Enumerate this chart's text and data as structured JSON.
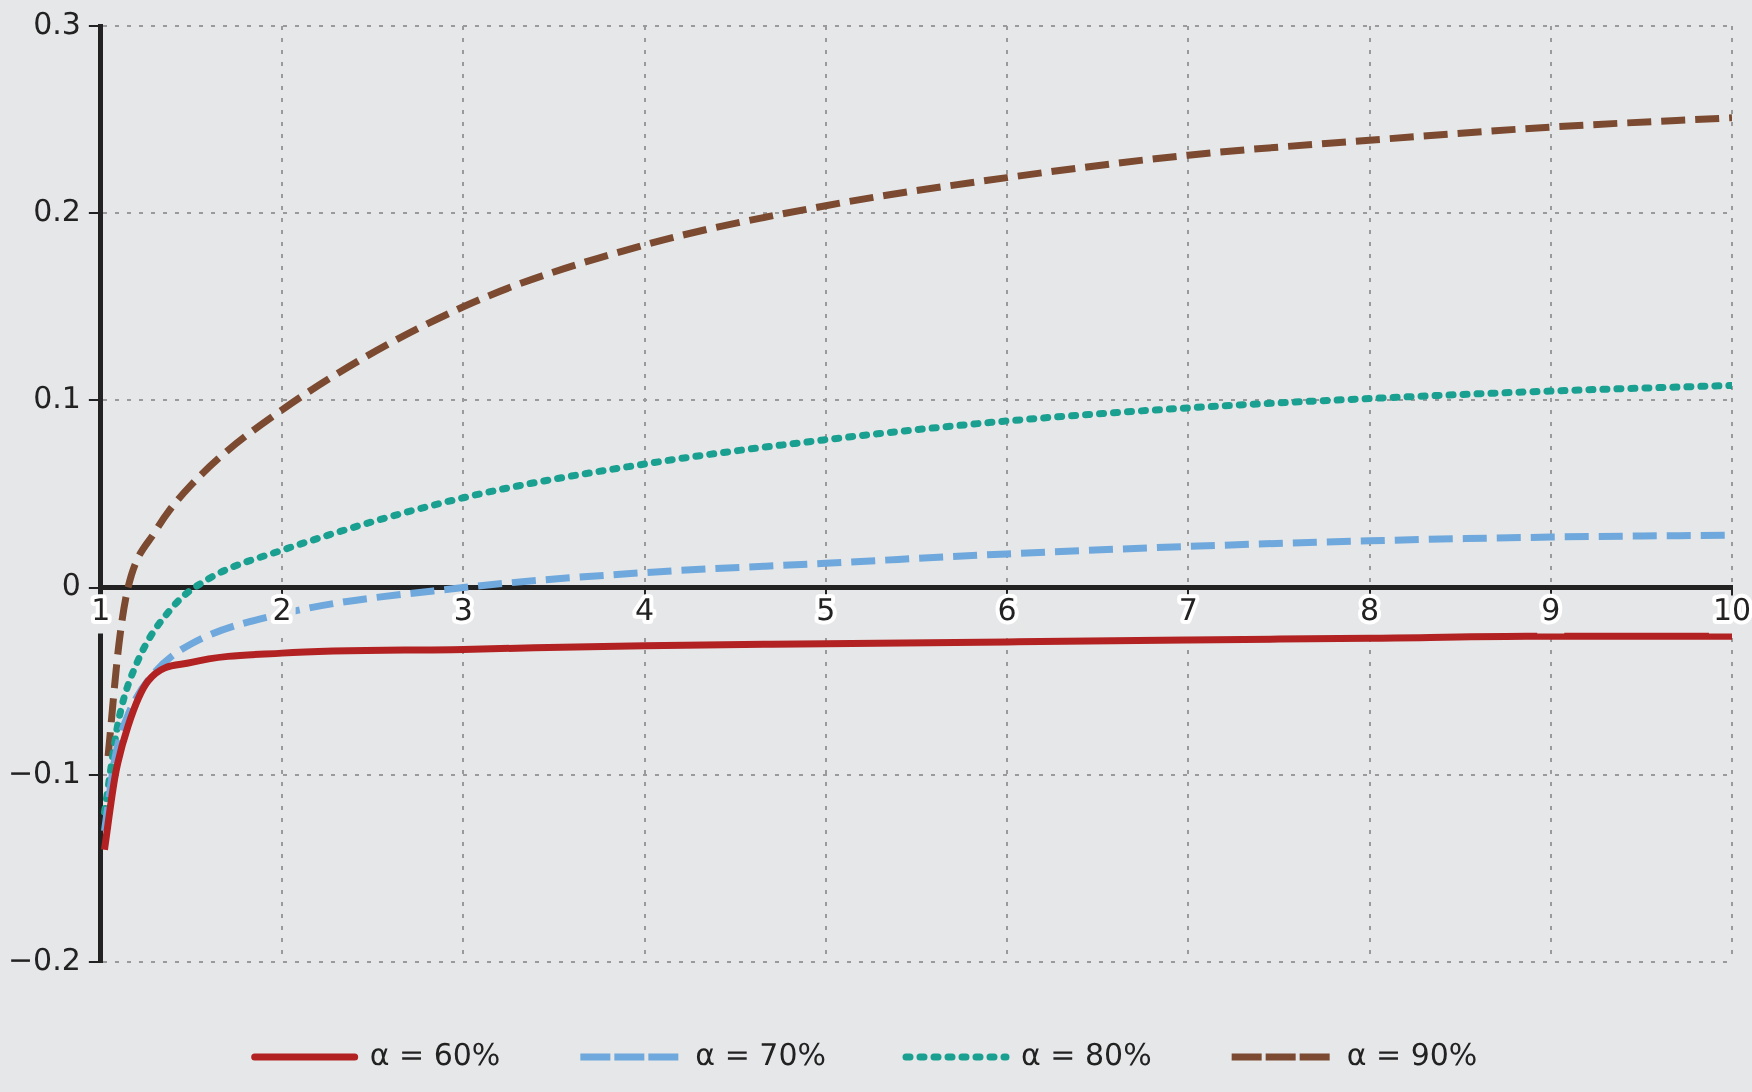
{
  "chart_data": {
    "type": "line",
    "legend": "bottom",
    "grid": true,
    "marker": "none",
    "xlim": [
      1,
      10
    ],
    "xticks": [
      1,
      2,
      3,
      4,
      5,
      6,
      7,
      8,
      9,
      10
    ],
    "ylim": [
      -0.2,
      0.3
    ],
    "yticks": [
      {
        "value": -0.2,
        "label": "−0.2"
      },
      {
        "value": -0.1,
        "label": "−0.1"
      },
      0,
      0.1,
      0.2,
      0.3
    ],
    "series": [
      {
        "name": "α = 60%",
        "color": "#b22222",
        "line_style": "solid",
        "x": [
          1.02,
          1.08,
          1.15,
          1.26,
          1.5,
          2,
          3,
          4,
          5,
          6,
          7,
          8,
          9,
          10
        ],
        "values": [
          -0.14,
          -0.1,
          -0.074,
          -0.05,
          -0.04,
          -0.035,
          -0.033,
          -0.031,
          -0.03,
          -0.029,
          -0.028,
          -0.027,
          -0.026,
          -0.026
        ]
      },
      {
        "name": "α = 70%",
        "color": "#6fa8dc",
        "line_style": "dashed",
        "x": [
          1.02,
          1.08,
          1.15,
          1.3,
          1.5,
          2,
          3,
          4,
          5,
          6,
          7,
          8,
          9,
          10
        ],
        "values": [
          -0.13,
          -0.09,
          -0.068,
          -0.045,
          -0.03,
          -0.014,
          0,
          0.008,
          0.013,
          0.018,
          0.022,
          0.025,
          0.027,
          0.028
        ]
      },
      {
        "name": "α = 80%",
        "color": "#1aa090",
        "line_style": "dotted",
        "x": [
          1.02,
          1.1,
          1.2,
          1.4,
          1.6,
          2,
          3,
          4,
          5,
          6,
          7,
          8,
          9,
          10
        ],
        "values": [
          -0.12,
          -0.07,
          -0.04,
          -0.01,
          0.005,
          0.02,
          0.048,
          0.066,
          0.079,
          0.089,
          0.096,
          0.101,
          0.105,
          0.108
        ]
      },
      {
        "name": "α = 90%",
        "color": "#7b4a30",
        "line_style": "dashed",
        "x": [
          1.04,
          1.1,
          1.15,
          1.3,
          1.5,
          2,
          3,
          4,
          5,
          6,
          7,
          8,
          9,
          10
        ],
        "values": [
          -0.09,
          -0.03,
          0,
          0.03,
          0.055,
          0.095,
          0.15,
          0.183,
          0.204,
          0.219,
          0.231,
          0.239,
          0.246,
          0.251
        ]
      }
    ]
  }
}
